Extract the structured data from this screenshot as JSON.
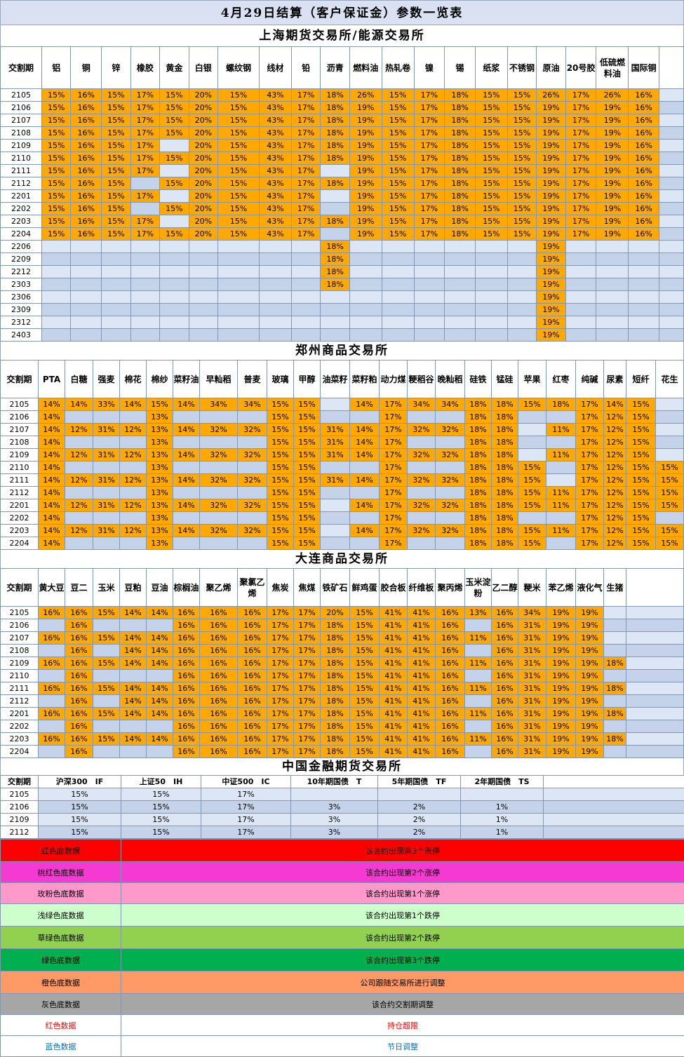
{
  "title": "4月29日结算（客户保证金）参数一览表",
  "shfe": {
    "name": "上海期货交易所/能源交易所",
    "headers": [
      "交割期",
      "铝",
      "铜",
      "锌",
      "橡胶",
      "黄金",
      "白银",
      "螺纹钢",
      "线材",
      "铅",
      "沥青",
      "燃料油",
      "热轧卷",
      "镍",
      "锡",
      "纸浆",
      "不锈钢",
      "原油",
      "20号胶",
      "低硫燃料油",
      "国际铜",
      "",
      ""
    ],
    "rows": [
      [
        "2105",
        "15%",
        "16%",
        "15%",
        "17%",
        "15%",
        "20%",
        "15%",
        "43%",
        "17%",
        "18%",
        "26%",
        "15%",
        "17%",
        "18%",
        "15%",
        "15%",
        "26%",
        "17%",
        "26%",
        "16%",
        "",
        ""
      ],
      [
        "2106",
        "15%",
        "16%",
        "15%",
        "17%",
        "15%",
        "20%",
        "15%",
        "43%",
        "17%",
        "18%",
        "19%",
        "15%",
        "17%",
        "18%",
        "15%",
        "15%",
        "19%",
        "17%",
        "19%",
        "16%",
        "",
        ""
      ],
      [
        "2107",
        "15%",
        "16%",
        "15%",
        "17%",
        "15%",
        "20%",
        "15%",
        "43%",
        "17%",
        "18%",
        "19%",
        "15%",
        "17%",
        "18%",
        "15%",
        "15%",
        "19%",
        "17%",
        "19%",
        "16%",
        "",
        ""
      ],
      [
        "2108",
        "15%",
        "16%",
        "15%",
        "17%",
        "15%",
        "20%",
        "15%",
        "43%",
        "17%",
        "18%",
        "19%",
        "15%",
        "17%",
        "18%",
        "15%",
        "15%",
        "19%",
        "17%",
        "19%",
        "16%",
        "",
        ""
      ],
      [
        "2109",
        "15%",
        "16%",
        "15%",
        "17%",
        "",
        "20%",
        "15%",
        "43%",
        "17%",
        "18%",
        "19%",
        "15%",
        "17%",
        "18%",
        "15%",
        "15%",
        "19%",
        "17%",
        "19%",
        "16%",
        "",
        ""
      ],
      [
        "2110",
        "15%",
        "16%",
        "15%",
        "17%",
        "15%",
        "20%",
        "15%",
        "43%",
        "17%",
        "18%",
        "19%",
        "15%",
        "17%",
        "18%",
        "15%",
        "15%",
        "19%",
        "17%",
        "19%",
        "16%",
        "",
        ""
      ],
      [
        "2111",
        "15%",
        "16%",
        "15%",
        "17%",
        "",
        "20%",
        "15%",
        "43%",
        "17%",
        "",
        "19%",
        "15%",
        "17%",
        "18%",
        "15%",
        "15%",
        "19%",
        "17%",
        "19%",
        "16%",
        "",
        ""
      ],
      [
        "2112",
        "15%",
        "16%",
        "15%",
        "",
        "15%",
        "20%",
        "15%",
        "43%",
        "17%",
        "18%",
        "19%",
        "15%",
        "17%",
        "18%",
        "15%",
        "15%",
        "19%",
        "17%",
        "19%",
        "16%",
        "",
        ""
      ],
      [
        "2201",
        "15%",
        "16%",
        "15%",
        "17%",
        "",
        "20%",
        "15%",
        "43%",
        "17%",
        "",
        "19%",
        "15%",
        "17%",
        "18%",
        "15%",
        "15%",
        "19%",
        "17%",
        "19%",
        "16%",
        "",
        ""
      ],
      [
        "2202",
        "15%",
        "16%",
        "15%",
        "",
        "15%",
        "20%",
        "15%",
        "43%",
        "17%",
        "",
        "19%",
        "15%",
        "17%",
        "18%",
        "15%",
        "15%",
        "19%",
        "17%",
        "19%",
        "16%",
        "",
        ""
      ],
      [
        "2203",
        "15%",
        "16%",
        "15%",
        "17%",
        "",
        "20%",
        "15%",
        "43%",
        "17%",
        "18%",
        "19%",
        "15%",
        "17%",
        "18%",
        "15%",
        "15%",
        "19%",
        "17%",
        "19%",
        "16%",
        "",
        ""
      ],
      [
        "2204",
        "15%",
        "16%",
        "15%",
        "17%",
        "15%",
        "20%",
        "15%",
        "43%",
        "17%",
        "",
        "19%",
        "15%",
        "17%",
        "18%",
        "15%",
        "15%",
        "19%",
        "17%",
        "19%",
        "16%",
        "",
        ""
      ],
      [
        "2206",
        "",
        "",
        "",
        "",
        "",
        "",
        "",
        "",
        "",
        "18%",
        "",
        "",
        "",
        "",
        "",
        "",
        "19%",
        "",
        "",
        "",
        "",
        ""
      ],
      [
        "2209",
        "",
        "",
        "",
        "",
        "",
        "",
        "",
        "",
        "",
        "18%",
        "",
        "",
        "",
        "",
        "",
        "",
        "19%",
        "",
        "",
        "",
        "",
        ""
      ],
      [
        "2212",
        "",
        "",
        "",
        "",
        "",
        "",
        "",
        "",
        "",
        "18%",
        "",
        "",
        "",
        "",
        "",
        "",
        "19%",
        "",
        "",
        "",
        "",
        ""
      ],
      [
        "2303",
        "",
        "",
        "",
        "",
        "",
        "",
        "",
        "",
        "",
        "18%",
        "",
        "",
        "",
        "",
        "",
        "",
        "19%",
        "",
        "",
        "",
        "",
        ""
      ],
      [
        "2306",
        "",
        "",
        "",
        "",
        "",
        "",
        "",
        "",
        "",
        "",
        "",
        "",
        "",
        "",
        "",
        "",
        "19%",
        "",
        "",
        "",
        "",
        ""
      ],
      [
        "2309",
        "",
        "",
        "",
        "",
        "",
        "",
        "",
        "",
        "",
        "",
        "",
        "",
        "",
        "",
        "",
        "",
        "19%",
        "",
        "",
        "",
        "",
        ""
      ],
      [
        "2312",
        "",
        "",
        "",
        "",
        "",
        "",
        "",
        "",
        "",
        "",
        "",
        "",
        "",
        "",
        "",
        "",
        "19%",
        "",
        "",
        "",
        "",
        ""
      ],
      [
        "2403",
        "",
        "",
        "",
        "",
        "",
        "",
        "",
        "",
        "",
        "",
        "",
        "",
        "",
        "",
        "",
        "",
        "19%",
        "",
        "",
        "",
        "",
        ""
      ]
    ]
  },
  "czce": {
    "name": "郑州商品交易所",
    "headers": [
      "交割期",
      "PTA",
      "白糖",
      "强麦",
      "棉花",
      "棉纱",
      "菜籽油",
      "早籼稻",
      "普麦",
      "玻璃",
      "甲醇",
      "油菜籽",
      "菜籽粕",
      "动力煤",
      "粳稻谷",
      "晚籼稻",
      "硅铁",
      "锰硅",
      "苹果",
      "红枣",
      "纯碱",
      "尿素",
      "短纤",
      "花生"
    ],
    "rows": [
      [
        "2105",
        "14%",
        "14%",
        "33%",
        "14%",
        "15%",
        "14%",
        "34%",
        "34%",
        "15%",
        "15%",
        "",
        "14%",
        "17%",
        "34%",
        "34%",
        "18%",
        "18%",
        "15%",
        "18%",
        "17%",
        "14%",
        "15%",
        ""
      ],
      [
        "2106",
        "14%",
        "",
        "",
        "",
        "13%",
        "",
        "",
        "",
        "15%",
        "15%",
        "",
        "",
        "17%",
        "",
        "",
        "18%",
        "18%",
        "",
        "",
        "17%",
        "12%",
        "15%",
        ""
      ],
      [
        "2107",
        "14%",
        "12%",
        "31%",
        "12%",
        "13%",
        "14%",
        "32%",
        "32%",
        "15%",
        "15%",
        "31%",
        "14%",
        "17%",
        "32%",
        "32%",
        "18%",
        "18%",
        "",
        "11%",
        "17%",
        "12%",
        "15%",
        ""
      ],
      [
        "2108",
        "14%",
        "",
        "",
        "",
        "13%",
        "",
        "",
        "",
        "15%",
        "15%",
        "31%",
        "14%",
        "17%",
        "",
        "",
        "18%",
        "18%",
        "",
        "",
        "17%",
        "12%",
        "15%",
        ""
      ],
      [
        "2109",
        "14%",
        "12%",
        "31%",
        "12%",
        "13%",
        "14%",
        "32%",
        "32%",
        "15%",
        "15%",
        "31%",
        "14%",
        "17%",
        "32%",
        "32%",
        "18%",
        "18%",
        "",
        "11%",
        "17%",
        "12%",
        "15%",
        ""
      ],
      [
        "2110",
        "14%",
        "",
        "",
        "",
        "13%",
        "",
        "",
        "",
        "15%",
        "15%",
        "",
        "",
        "17%",
        "",
        "",
        "18%",
        "18%",
        "15%",
        "",
        "17%",
        "12%",
        "15%",
        "15%"
      ],
      [
        "2111",
        "14%",
        "12%",
        "31%",
        "12%",
        "13%",
        "14%",
        "32%",
        "32%",
        "15%",
        "15%",
        "31%",
        "14%",
        "17%",
        "32%",
        "32%",
        "18%",
        "18%",
        "15%",
        "",
        "17%",
        "12%",
        "15%",
        "15%"
      ],
      [
        "2112",
        "14%",
        "",
        "",
        "",
        "13%",
        "",
        "",
        "",
        "15%",
        "15%",
        "",
        "",
        "17%",
        "",
        "",
        "18%",
        "18%",
        "15%",
        "11%",
        "17%",
        "12%",
        "15%",
        "15%"
      ],
      [
        "2201",
        "14%",
        "12%",
        "31%",
        "12%",
        "13%",
        "14%",
        "32%",
        "32%",
        "15%",
        "15%",
        "",
        "14%",
        "17%",
        "32%",
        "32%",
        "18%",
        "18%",
        "15%",
        "11%",
        "17%",
        "12%",
        "15%",
        "15%"
      ],
      [
        "2202",
        "14%",
        "",
        "",
        "",
        "13%",
        "",
        "",
        "",
        "15%",
        "15%",
        "",
        "",
        "17%",
        "",
        "",
        "18%",
        "18%",
        "",
        "",
        "17%",
        "12%",
        "15%",
        ""
      ],
      [
        "2203",
        "14%",
        "12%",
        "31%",
        "12%",
        "13%",
        "14%",
        "32%",
        "32%",
        "15%",
        "15%",
        "",
        "14%",
        "17%",
        "32%",
        "32%",
        "18%",
        "18%",
        "15%",
        "11%",
        "17%",
        "12%",
        "15%",
        "15%"
      ],
      [
        "2204",
        "14%",
        "",
        "",
        "",
        "13%",
        "",
        "",
        "",
        "15%",
        "15%",
        "",
        "",
        "17%",
        "",
        "",
        "18%",
        "18%",
        "15%",
        "",
        "17%",
        "12%",
        "15%",
        "15%"
      ]
    ]
  },
  "dce": {
    "name": "大连商品交易所",
    "headers": [
      "交割期",
      "黄大豆",
      "豆二",
      "玉米",
      "豆粕",
      "豆油",
      "棕榈油",
      "聚乙烯",
      "聚氯乙烯",
      "焦炭",
      "焦煤",
      "铁矿石",
      "鲜鸡蛋",
      "胶合板",
      "纤维板",
      "聚丙烯",
      "玉米淀粉",
      "乙二醇",
      "粳米",
      "苯乙烯",
      "液化气",
      "生猪",
      "",
      ""
    ],
    "rows": [
      [
        "2105",
        "16%",
        "16%",
        "15%",
        "14%",
        "14%",
        "16%",
        "16%",
        "16%",
        "17%",
        "17%",
        "20%",
        "15%",
        "41%",
        "41%",
        "16%",
        "13%",
        "16%",
        "34%",
        "19%",
        "19%",
        "",
        "",
        ""
      ],
      [
        "2106",
        "",
        "16%",
        "",
        "",
        "",
        "16%",
        "16%",
        "16%",
        "17%",
        "17%",
        "18%",
        "15%",
        "41%",
        "41%",
        "16%",
        "",
        "16%",
        "31%",
        "19%",
        "19%",
        "",
        "",
        ""
      ],
      [
        "2107",
        "16%",
        "16%",
        "15%",
        "14%",
        "14%",
        "16%",
        "16%",
        "16%",
        "17%",
        "17%",
        "18%",
        "15%",
        "41%",
        "41%",
        "16%",
        "11%",
        "16%",
        "31%",
        "19%",
        "19%",
        "",
        "",
        ""
      ],
      [
        "2108",
        "",
        "16%",
        "",
        "14%",
        "14%",
        "16%",
        "16%",
        "16%",
        "17%",
        "17%",
        "18%",
        "15%",
        "41%",
        "41%",
        "16%",
        "",
        "16%",
        "31%",
        "19%",
        "19%",
        "",
        "",
        ""
      ],
      [
        "2109",
        "16%",
        "16%",
        "15%",
        "14%",
        "14%",
        "16%",
        "16%",
        "16%",
        "17%",
        "17%",
        "18%",
        "15%",
        "41%",
        "41%",
        "16%",
        "11%",
        "16%",
        "31%",
        "19%",
        "19%",
        "18%",
        "",
        ""
      ],
      [
        "2110",
        "",
        "16%",
        "",
        "",
        "",
        "16%",
        "16%",
        "16%",
        "17%",
        "17%",
        "18%",
        "15%",
        "41%",
        "41%",
        "16%",
        "",
        "16%",
        "31%",
        "19%",
        "19%",
        "",
        "",
        ""
      ],
      [
        "2111",
        "16%",
        "16%",
        "15%",
        "14%",
        "14%",
        "16%",
        "16%",
        "16%",
        "17%",
        "17%",
        "18%",
        "15%",
        "41%",
        "41%",
        "16%",
        "11%",
        "16%",
        "31%",
        "19%",
        "19%",
        "18%",
        "",
        ""
      ],
      [
        "2112",
        "",
        "16%",
        "",
        "14%",
        "14%",
        "16%",
        "16%",
        "16%",
        "17%",
        "17%",
        "18%",
        "15%",
        "41%",
        "41%",
        "16%",
        "",
        "16%",
        "31%",
        "19%",
        "19%",
        "",
        "",
        ""
      ],
      [
        "2201",
        "16%",
        "16%",
        "15%",
        "14%",
        "14%",
        "16%",
        "16%",
        "16%",
        "17%",
        "17%",
        "18%",
        "15%",
        "41%",
        "41%",
        "16%",
        "11%",
        "16%",
        "31%",
        "19%",
        "19%",
        "18%",
        "",
        ""
      ],
      [
        "2202",
        "",
        "16%",
        "",
        "",
        "",
        "16%",
        "16%",
        "16%",
        "17%",
        "17%",
        "18%",
        "15%",
        "41%",
        "41%",
        "16%",
        "",
        "16%",
        "31%",
        "19%",
        "19%",
        "",
        "",
        ""
      ],
      [
        "2203",
        "16%",
        "16%",
        "15%",
        "14%",
        "14%",
        "16%",
        "16%",
        "16%",
        "17%",
        "17%",
        "18%",
        "15%",
        "41%",
        "41%",
        "16%",
        "11%",
        "16%",
        "31%",
        "19%",
        "19%",
        "18%",
        "",
        ""
      ],
      [
        "2204",
        "",
        "16%",
        "",
        "",
        "",
        "16%",
        "16%",
        "16%",
        "17%",
        "17%",
        "18%",
        "15%",
        "41%",
        "41%",
        "16%",
        "",
        "16%",
        "31%",
        "19%",
        "19%",
        "",
        "",
        ""
      ]
    ]
  },
  "cffex": {
    "name": "中国金融期货交易所",
    "headers": [
      "交割期",
      "沪深300　IF",
      "上证50　IH",
      "中证500　IC",
      "10年期国债　T",
      "5年期国债　TF",
      "2年期国债　TS",
      ""
    ],
    "rows": [
      [
        "2105",
        "15%",
        "15%",
        "17%",
        "",
        "",
        "",
        ""
      ],
      [
        "2106",
        "15%",
        "15%",
        "17%",
        "3%",
        "2%",
        "1%",
        ""
      ],
      [
        "2109",
        "15%",
        "15%",
        "17%",
        "3%",
        "2%",
        "1%",
        ""
      ],
      [
        "2112",
        "15%",
        "15%",
        "17%",
        "3%",
        "2%",
        "1%",
        ""
      ]
    ]
  },
  "legend": [
    {
      "label": "红色底数据",
      "desc": "该合约出现第3个涨停",
      "bg": "#ff0000",
      "fg": "#000000"
    },
    {
      "label": "桃红色底数据",
      "desc": "该合约出现第2个涨停",
      "bg": "#f43ad2",
      "fg": "#000000"
    },
    {
      "label": "玫粉色底数据",
      "desc": "该合约出现第1个涨停",
      "bg": "#ff99cc",
      "fg": "#000000"
    },
    {
      "label": "浅绿色底数据",
      "desc": "该合约出现第1个跌停",
      "bg": "#ccffcc",
      "fg": "#000000"
    },
    {
      "label": "草绿色底数据",
      "desc": "该合约出现第2个跌停",
      "bg": "#92d050",
      "fg": "#000000"
    },
    {
      "label": "绿色底数据",
      "desc": "该合约出现第3个跌停",
      "bg": "#00b050",
      "fg": "#000000"
    },
    {
      "label": "橙色底数据",
      "desc": "公司跟随交易所进行调整",
      "bg": "#ff9966",
      "fg": "#000000"
    },
    {
      "label": "灰色底数据",
      "desc": "该合约交割期调整",
      "bg": "#a6a6a6",
      "fg": "#000000"
    },
    {
      "label": "红色数据",
      "desc": "持仓超限",
      "bg": "#ffffff",
      "fg": "#ff0000"
    },
    {
      "label": "蓝色数据",
      "desc": "节日调整",
      "bg": "#ffffff",
      "fg": "#0070c0"
    }
  ],
  "colors": {
    "orange": "#ffa800",
    "row_blue": "#c5d3ea",
    "row_light": "#dde6f4"
  }
}
